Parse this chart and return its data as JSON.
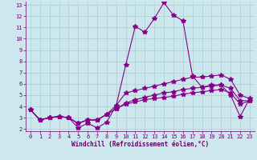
{
  "x": [
    0,
    1,
    2,
    3,
    4,
    5,
    6,
    7,
    8,
    9,
    10,
    11,
    12,
    13,
    14,
    15,
    16,
    17,
    18,
    19,
    20,
    21,
    22,
    23
  ],
  "lines": [
    [
      3.7,
      2.8,
      3.0,
      3.1,
      3.0,
      2.1,
      2.5,
      2.1,
      2.6,
      4.1,
      7.7,
      11.1,
      10.6,
      11.8,
      13.2,
      12.1,
      11.6,
      6.7,
      5.7,
      5.9,
      5.9,
      5.0,
      3.1,
      4.7
    ],
    [
      3.7,
      2.8,
      3.0,
      3.1,
      3.0,
      2.5,
      2.8,
      2.8,
      3.3,
      4.1,
      5.2,
      5.4,
      5.6,
      5.8,
      6.0,
      6.2,
      6.4,
      6.6,
      6.6,
      6.7,
      6.8,
      6.4,
      5.0,
      4.7
    ],
    [
      3.7,
      2.8,
      3.0,
      3.1,
      3.0,
      2.5,
      2.8,
      2.8,
      3.3,
      3.8,
      4.3,
      4.6,
      4.8,
      5.0,
      5.2,
      5.3,
      5.5,
      5.6,
      5.7,
      5.8,
      5.9,
      5.6,
      4.5,
      4.5
    ],
    [
      3.7,
      2.8,
      3.0,
      3.1,
      3.0,
      2.5,
      2.8,
      2.8,
      3.3,
      3.8,
      4.2,
      4.4,
      4.6,
      4.7,
      4.8,
      4.9,
      5.1,
      5.2,
      5.3,
      5.4,
      5.5,
      5.2,
      4.2,
      4.5
    ]
  ],
  "line_color": "#880088",
  "bg_color": "#cce8ee",
  "grid_color": "#aacccc",
  "axis_label_color": "#660066",
  "xlabel": "Windchill (Refroidissement éolien,°C)",
  "xlim": [
    -0.5,
    23.5
  ],
  "ylim": [
    1.8,
    13.3
  ],
  "yticks": [
    2,
    3,
    4,
    5,
    6,
    7,
    8,
    9,
    10,
    11,
    12,
    13
  ],
  "xticks": [
    0,
    1,
    2,
    3,
    4,
    5,
    6,
    7,
    8,
    9,
    10,
    11,
    12,
    13,
    14,
    15,
    16,
    17,
    18,
    19,
    20,
    21,
    22,
    23
  ],
  "marker": "*",
  "markersize": 4,
  "linewidth": 0.8,
  "tick_fontsize": 5,
  "xlabel_fontsize": 5.5
}
